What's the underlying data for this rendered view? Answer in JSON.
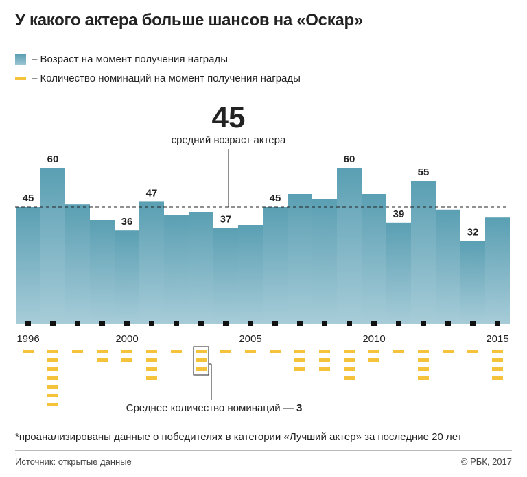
{
  "title": "У какого актера больше шансов на «Оскар»",
  "legend": {
    "age": "– Возраст на момент получения награды",
    "nominations": "– Количество номинаций на момент получения награды"
  },
  "colors": {
    "bar_top": "#5a9fb3",
    "bar_bottom": "#a7ccd8",
    "dash": "#f5c33b",
    "text": "#222222"
  },
  "chart_data": {
    "type": "bar",
    "years": [
      1996,
      1997,
      1998,
      1999,
      2000,
      2001,
      2002,
      2003,
      2004,
      2005,
      2006,
      2007,
      2008,
      2009,
      2010,
      2011,
      2012,
      2013,
      2014,
      2015
    ],
    "series": [
      {
        "name": "Возраст на момент получения награды",
        "values": [
          45,
          60,
          46,
          40,
          36,
          47,
          42,
          43,
          37,
          38,
          45,
          50,
          48,
          60,
          50,
          39,
          55,
          44,
          32,
          41
        ]
      },
      {
        "name": "Количество номинаций на момент получения награды",
        "values": [
          1,
          7,
          1,
          2,
          2,
          4,
          1,
          3,
          1,
          1,
          1,
          3,
          3,
          4,
          2,
          1,
          4,
          1,
          1,
          4
        ]
      }
    ],
    "value_labels": {
      "1996": "45",
      "1997": "60",
      "2000": "36",
      "2001": "47",
      "2004": "37",
      "2006": "45",
      "2009": "60",
      "2011": "39",
      "2012": "55",
      "2014": "32"
    },
    "x_tick_labels": [
      "1996",
      "2000",
      "2005",
      "2010",
      "2015"
    ],
    "average_age": {
      "value": "45",
      "label": "средний возраст актера"
    },
    "average_nominations": {
      "label": "Среднее количество номинаций — ",
      "value": "3"
    },
    "ylim": [
      0,
      60
    ]
  },
  "footnote": "*проанализированы данные о победителях в категории «Лучший актер» за последние 20 лет",
  "source": "Источник: открытые данные",
  "copyright": "© РБК, 2017"
}
